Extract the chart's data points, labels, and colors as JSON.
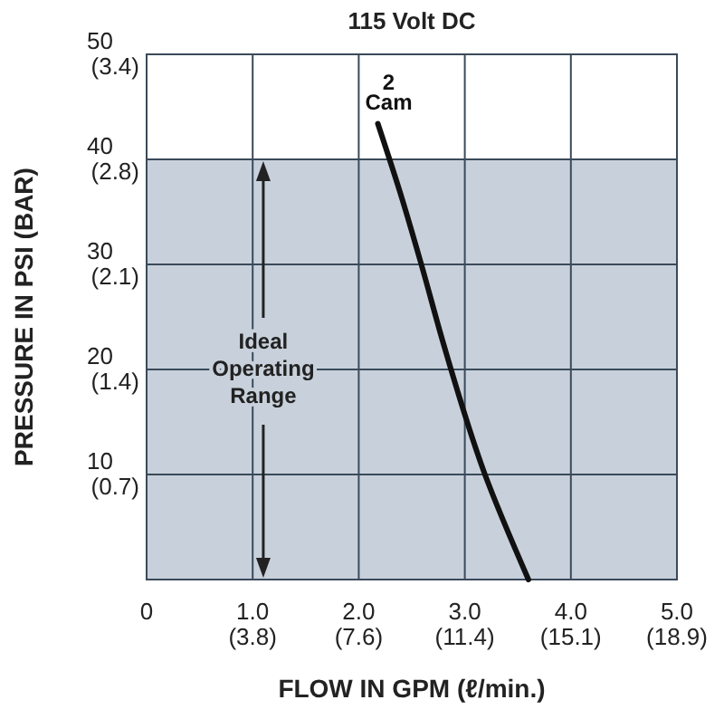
{
  "chart_data": {
    "type": "line",
    "title": "115 Volt DC",
    "xlabel": "FLOW IN GPM (ℓ/min.)",
    "ylabel": "PRESSURE IN PSI (BAR)",
    "xlim": [
      0,
      5
    ],
    "xticks": [
      0,
      {
        "value": 1,
        "label": "1.0"
      },
      {
        "value": 2,
        "label": "2.0"
      },
      {
        "value": 3,
        "label": "3.0"
      },
      {
        "value": 4,
        "label": "4.0"
      },
      {
        "value": 5,
        "label": "5.0"
      }
    ],
    "x2lim": [
      0,
      18.927
    ],
    "x2ticks": [
      {
        "value": 3.785,
        "label": "(3.8)"
      },
      {
        "value": 7.571,
        "label": "(7.6)"
      },
      {
        "value": 11.356,
        "label": "(11.4)"
      },
      {
        "value": 15.142,
        "label": "(15.1)"
      },
      {
        "value": 18.927,
        "label": "(18.9)"
      }
    ],
    "ylim": [
      0,
      50
    ],
    "yticks": [
      10,
      20,
      30,
      40,
      50
    ],
    "y2lim": [
      0,
      3.447
    ],
    "y2ticks": [
      {
        "value": 0.689,
        "label": "(0.7)"
      },
      {
        "value": 1.379,
        "label": "(1.4)"
      },
      {
        "value": 2.068,
        "label": "(2.1)"
      },
      {
        "value": 2.758,
        "label": "(2.8)"
      },
      {
        "value": 3.447,
        "label": "(3.4)"
      }
    ],
    "grid": true,
    "bands": [
      {
        "axis": "y",
        "from": 0,
        "to": 40,
        "label": "Ideal Operating Range",
        "color": "#c8d1db"
      }
    ],
    "series": [
      {
        "name": "2 Cam",
        "color": "#111111",
        "x": [
          2.18,
          2.41,
          2.59,
          2.8,
          3.19,
          3.6
        ],
        "values": [
          43.4,
          36.2,
          30,
          22.4,
          10,
          0
        ]
      }
    ]
  }
}
